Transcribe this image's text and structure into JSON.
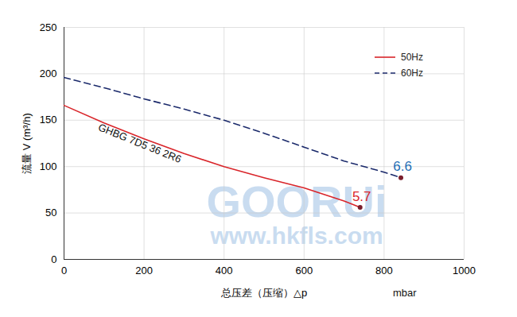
{
  "chart_data": {
    "type": "line",
    "x_label": "总压差（压缩）△p",
    "x_unit": "mbar",
    "y_label": "流量 V (m³/h)",
    "xlim": [
      0,
      1000
    ],
    "xticks": [
      0,
      200,
      400,
      600,
      800,
      1000
    ],
    "ylim": [
      0,
      250
    ],
    "yticks": [
      0,
      50,
      100,
      150,
      200,
      250
    ],
    "grid": true,
    "legend": "top-right",
    "series": [
      {
        "name": "50Hz",
        "color": "#d9252a",
        "line_style": "solid",
        "x": [
          0,
          100,
          200,
          300,
          400,
          500,
          600,
          700,
          740
        ],
        "values": [
          166,
          147,
          130,
          114,
          100,
          88,
          77,
          63,
          56
        ]
      },
      {
        "name": "60Hz",
        "color": "#1b2a6b",
        "line_style": "dashed",
        "x": [
          0,
          100,
          200,
          300,
          400,
          500,
          600,
          700,
          800,
          842
        ],
        "values": [
          196,
          185,
          173,
          162,
          150,
          136,
          121,
          106,
          94,
          88
        ]
      }
    ],
    "curve_label": {
      "text": "GHBG 7D5 36 2R6",
      "x": 189,
      "y": 125
    },
    "annotations": [
      {
        "text": "5.7",
        "x": 740,
        "y": 56,
        "color": "#d9252a"
      },
      {
        "text": "6.6",
        "x": 842,
        "y": 88,
        "color": "#1f6fb5"
      }
    ],
    "watermark": [
      "GOORUi",
      "www.hkfls.com"
    ]
  }
}
